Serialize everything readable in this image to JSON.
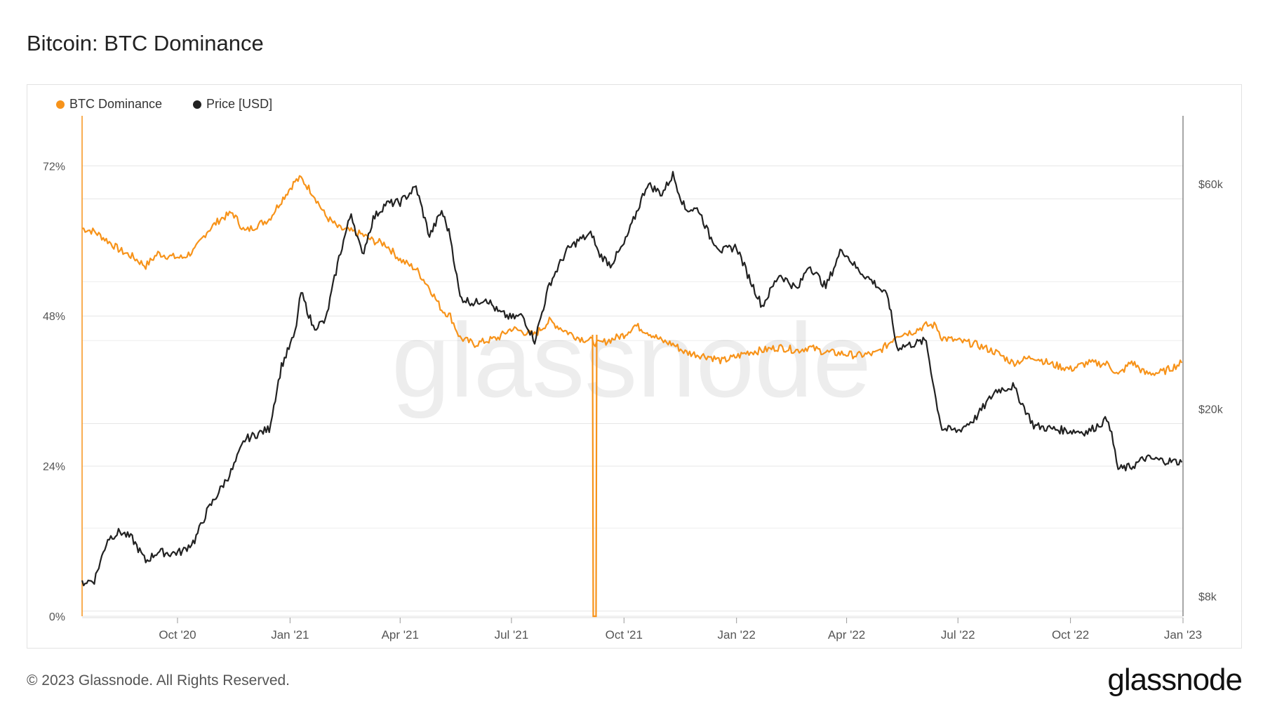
{
  "title": "Bitcoin: BTC Dominance",
  "footer": "© 2023 Glassnode. All Rights Reserved.",
  "brand": "glassnode",
  "watermark": "glassnode",
  "colors": {
    "dominance": "#f7931a",
    "price": "#222222",
    "grid": "#e6e6e6",
    "axis_text": "#555555"
  },
  "chart_data": {
    "type": "line",
    "legend_position": "top-left",
    "grid": true,
    "x": [
      "2020-07-15",
      "2020-07-25",
      "2020-08-05",
      "2020-08-15",
      "2020-08-25",
      "2020-09-05",
      "2020-09-15",
      "2020-09-25",
      "2020-10-05",
      "2020-10-15",
      "2020-10-25",
      "2020-11-05",
      "2020-11-15",
      "2020-11-25",
      "2020-12-05",
      "2020-12-15",
      "2020-12-25",
      "2021-01-05",
      "2021-01-10",
      "2021-01-20",
      "2021-01-30",
      "2021-02-10",
      "2021-02-20",
      "2021-03-01",
      "2021-03-10",
      "2021-03-20",
      "2021-04-01",
      "2021-04-14",
      "2021-04-25",
      "2021-05-05",
      "2021-05-12",
      "2021-05-20",
      "2021-06-01",
      "2021-06-10",
      "2021-06-20",
      "2021-07-01",
      "2021-07-10",
      "2021-07-20",
      "2021-08-01",
      "2021-08-15",
      "2021-08-25",
      "2021-09-05",
      "2021-09-10",
      "2021-09-20",
      "2021-10-01",
      "2021-10-10",
      "2021-10-20",
      "2021-11-01",
      "2021-11-10",
      "2021-11-20",
      "2021-12-01",
      "2021-12-10",
      "2021-12-20",
      "2022-01-01",
      "2022-01-10",
      "2022-01-22",
      "2022-02-05",
      "2022-02-20",
      "2022-03-01",
      "2022-03-15",
      "2022-03-28",
      "2022-04-10",
      "2022-04-25",
      "2022-05-05",
      "2022-05-12",
      "2022-05-25",
      "2022-06-05",
      "2022-06-13",
      "2022-06-18",
      "2022-07-01",
      "2022-07-15",
      "2022-08-01",
      "2022-08-15",
      "2022-09-01",
      "2022-09-15",
      "2022-10-01",
      "2022-10-15",
      "2022-11-01",
      "2022-11-09",
      "2022-11-20",
      "2022-12-01",
      "2022-12-15",
      "2022-12-31"
    ],
    "series": [
      {
        "name": "BTC Dominance",
        "axis": "left",
        "values": [
          62,
          61.5,
          60,
          58.5,
          57.5,
          56,
          58,
          57.5,
          57.3,
          58.5,
          61.5,
          63.5,
          64.5,
          61.5,
          62.5,
          63.5,
          66.5,
          69.5,
          70,
          67.5,
          64,
          62,
          61.5,
          61,
          60,
          59.5,
          57,
          55.5,
          52.5,
          49,
          48,
          44.5,
          43.5,
          44,
          44.5,
          46,
          45.5,
          45,
          47.2,
          45.5,
          44.5,
          44,
          43.5,
          44.2,
          45,
          46.5,
          45.5,
          44,
          43.5,
          42.2,
          41.8,
          41.5,
          40.8,
          41.5,
          42.2,
          42.5,
          43,
          42.5,
          43,
          42.2,
          42,
          41.7,
          42,
          43.5,
          45,
          45.5,
          46.5,
          46.5,
          44.5,
          44,
          43.5,
          42.2,
          40.5,
          41.5,
          40.3,
          39.5,
          40.5,
          40.3,
          38.5,
          40.7,
          38.8,
          39,
          40.5
        ],
        "outlier": {
          "date": "2021-09-07",
          "value": 0,
          "note": "data gap / drop to 0%"
        }
      },
      {
        "name": "Price [USD]",
        "axis": "right",
        "values": [
          9200,
          9300,
          11400,
          11800,
          11400,
          10200,
          10700,
          10600,
          10700,
          11300,
          13000,
          14500,
          16000,
          18500,
          19000,
          19500,
          26500,
          31000,
          38000,
          32000,
          33000,
          45000,
          56000,
          45500,
          54500,
          58500,
          59000,
          63500,
          50000,
          56500,
          50000,
          37000,
          36000,
          37000,
          34500,
          33500,
          33900,
          30000,
          39500,
          46500,
          49000,
          50500,
          46000,
          43500,
          48000,
          55000,
          64500,
          61500,
          67500,
          57000,
          57000,
          50000,
          46500,
          47500,
          41500,
          35500,
          41500,
          38500,
          43500,
          39000,
          47000,
          42500,
          39500,
          37000,
          29000,
          29500,
          30000,
          22500,
          19500,
          19300,
          20500,
          23500,
          24000,
          19800,
          19500,
          19300,
          19200,
          20500,
          16000,
          16200,
          16900,
          16700,
          16550
        ]
      }
    ],
    "y_left": {
      "label": "",
      "ticks": [
        "72%",
        "48%",
        "24%",
        "0%"
      ],
      "range": [
        0,
        72
      ]
    },
    "y_right": {
      "label": "",
      "ticks": [
        "$60k",
        "$20k",
        "$8k"
      ],
      "scale": "log",
      "range": [
        8000,
        60000
      ]
    },
    "x_ticks": [
      "Oct '20",
      "Jan '21",
      "Apr '21",
      "Jul '21",
      "Oct '21",
      "Jan '22",
      "Apr '22",
      "Jul '22",
      "Oct '22",
      "Jan '23"
    ]
  }
}
